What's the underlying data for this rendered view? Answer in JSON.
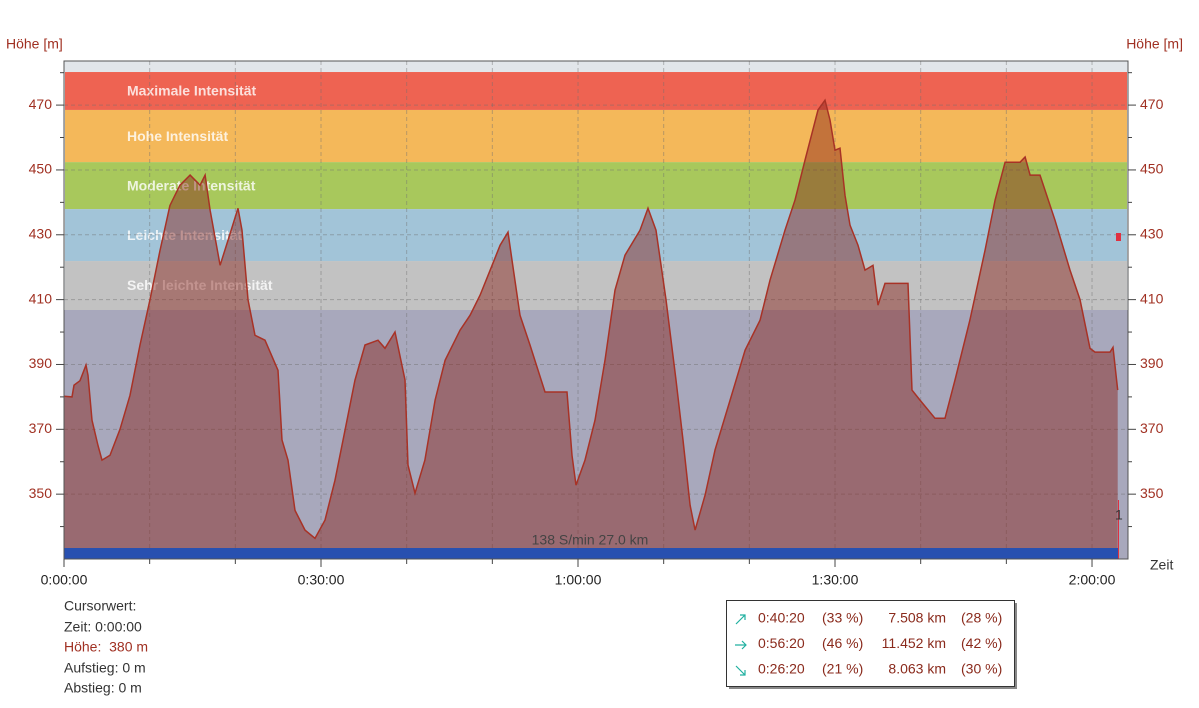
{
  "chart_data": {
    "type": "area",
    "y_label": "Höhe [m]",
    "x_label": "Zeit",
    "xlim": [
      0,
      7452
    ],
    "ylim": [
      330,
      483.6
    ],
    "xticks": [
      {
        "value": 0,
        "label": "0:00:00"
      },
      {
        "value": 1800,
        "label": "0:30:00"
      },
      {
        "value": 3600,
        "label": "1:00:00"
      },
      {
        "value": 5400,
        "label": "1:30:00"
      },
      {
        "value": 7200,
        "label": "2:00:00"
      }
    ],
    "x_minor_ticks": [
      600,
      1200,
      2400,
      3000,
      4200,
      4800,
      6000,
      6600
    ],
    "yticks": [
      350,
      370,
      390,
      410,
      430,
      450,
      470
    ],
    "y_minor_ticks": [
      340,
      360,
      380,
      400,
      420,
      440,
      460,
      480
    ],
    "grid": true,
    "bands": [
      {
        "name": "Maximale Intensität",
        "from": 468.5,
        "to": 480.2,
        "color": "#ee6352"
      },
      {
        "name": "Hohe Intensität",
        "from": 452.4,
        "to": 468.5,
        "color": "#f4b85a"
      },
      {
        "name": "Moderate Intensität",
        "from": 437.9,
        "to": 452.4,
        "color": "#a8c85c"
      },
      {
        "name": "Leichte Intensität",
        "from": 421.9,
        "to": 437.9,
        "color": "#a2c4d8"
      },
      {
        "name": "Sehr leichte Intensität",
        "from": 406.8,
        "to": 421.9,
        "color": "#c2c2c2"
      }
    ],
    "x": [
      0,
      56,
      70,
      112,
      154,
      168,
      196,
      238,
      266,
      322,
      392,
      462,
      532,
      602,
      672,
      742,
      812,
      883,
      953,
      988,
      1023,
      1093,
      1149,
      1219,
      1247,
      1289,
      1338,
      1408,
      1499,
      1527,
      1569,
      1618,
      1688,
      1758,
      1828,
      1898,
      1968,
      2038,
      2108,
      2199,
      2248,
      2318,
      2388,
      2409,
      2458,
      2528,
      2599,
      2669,
      2774,
      2844,
      2914,
      2998,
      3054,
      3110,
      3138,
      3194,
      3264,
      3369,
      3523,
      3558,
      3586,
      3649,
      3719,
      3789,
      3859,
      3929,
      4034,
      4090,
      4146,
      4216,
      4286,
      4335,
      4385,
      4420,
      4490,
      4560,
      4665,
      4770,
      4875,
      4945,
      5050,
      5120,
      5190,
      5281,
      5330,
      5365,
      5400,
      5435,
      5470,
      5505,
      5561,
      5610,
      5666,
      5701,
      5750,
      5911,
      5939,
      5995,
      6100,
      6170,
      6240,
      6345,
      6451,
      6521,
      6591,
      6696,
      6731,
      6766,
      6836,
      6941,
      7046,
      7116,
      7186,
      7221,
      7326,
      7347,
      7380
    ],
    "values": [
      380.2,
      380,
      383.6,
      385,
      389.8,
      386.7,
      372.8,
      365,
      360.5,
      362,
      370,
      380.5,
      396,
      410,
      425,
      439,
      445.3,
      448.4,
      445.3,
      448.4,
      437.6,
      420.6,
      428.4,
      438.2,
      431.4,
      410,
      399,
      397.5,
      388.2,
      366.7,
      360.5,
      345,
      338.9,
      336.4,
      342,
      354.3,
      369.7,
      385.2,
      396,
      397.5,
      395,
      400,
      385.2,
      359,
      350.3,
      360.5,
      379,
      391.3,
      400.6,
      405.2,
      411.4,
      420.6,
      426.8,
      430.8,
      422.2,
      405.2,
      396,
      381.5,
      381.5,
      362,
      352.8,
      360.5,
      372.8,
      391.3,
      412.9,
      423.7,
      431.4,
      438.2,
      431.4,
      410,
      385.2,
      366.7,
      346.6,
      338.9,
      349.7,
      363.7,
      379,
      394.4,
      403.7,
      416,
      431.4,
      440.7,
      453,
      468.5,
      471.5,
      465.4,
      456.1,
      456.7,
      442.2,
      433,
      426.8,
      419.1,
      420.6,
      408.3,
      415,
      415,
      382.1,
      379,
      373.4,
      373.4,
      385.2,
      403.7,
      425.3,
      440.7,
      452.4,
      452.4,
      454,
      448.4,
      448.4,
      434.5,
      419.1,
      410,
      395,
      393.8,
      393.8,
      395.3,
      382.1
    ],
    "color": "#a83226",
    "annotation": "138 S/min 27.0 km",
    "end_marker_label": "1",
    "cursor": {
      "title": "Cursorwert:",
      "time": "Zeit: 0:00:00",
      "height": "Höhe:  380 m",
      "ascent": "Aufstieg: 0 m",
      "descent": "Abstieg: 0 m"
    },
    "stats": [
      [
        "0:40:20",
        "(33 %)",
        "7.508 km",
        "(28 %)"
      ],
      [
        "0:56:20",
        "(46 %)",
        "11.452 km",
        "(42 %)"
      ],
      [
        "0:26:20",
        "(21 %)",
        "8.063 km",
        "(30 %)"
      ]
    ]
  }
}
